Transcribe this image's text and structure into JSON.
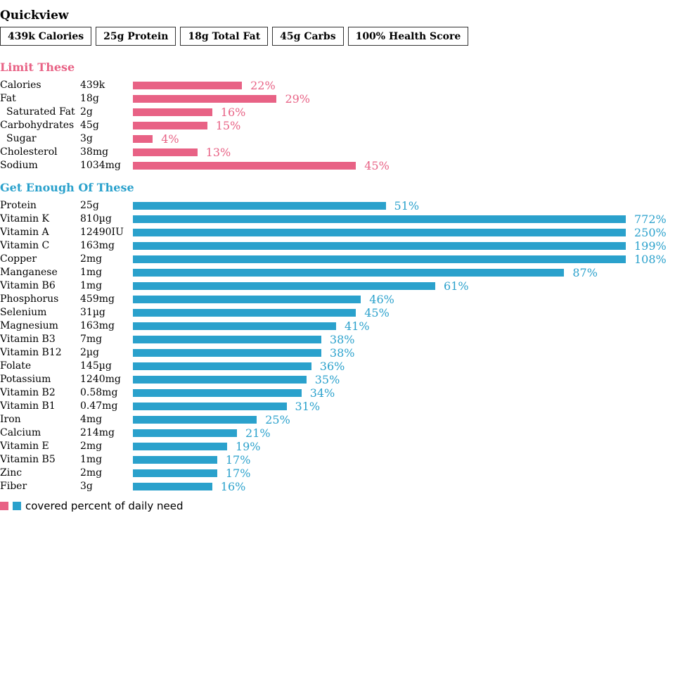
{
  "colors": {
    "limit": "#e86285",
    "enough": "#2aa1cc"
  },
  "quickview": {
    "title": "Quickview",
    "tiles": [
      "439k Calories",
      "25g Protein",
      "18g Total Fat",
      "45g Carbs",
      "100% Health Score"
    ]
  },
  "chart_data": [
    {
      "type": "bar",
      "title": "Limit These",
      "series_unit": "% of daily need",
      "rows": [
        {
          "name": "Calories",
          "amount": "439k",
          "value": 22,
          "label": "22%"
        },
        {
          "name": "Fat",
          "amount": "18g",
          "value": 29,
          "label": "29%"
        },
        {
          "name": "Saturated Fat",
          "amount": "2g",
          "value": 16,
          "label": "16%",
          "indent": true
        },
        {
          "name": "Carbohydrates",
          "amount": "45g",
          "value": 15,
          "label": "15%"
        },
        {
          "name": "Sugar",
          "amount": "3g",
          "value": 4,
          "label": "4%",
          "indent": true
        },
        {
          "name": "Cholesterol",
          "amount": "38mg",
          "value": 13,
          "label": "13%"
        },
        {
          "name": "Sodium",
          "amount": "1034mg",
          "value": 45,
          "label": "45%"
        }
      ]
    },
    {
      "type": "bar",
      "title": "Get Enough Of These",
      "series_unit": "% of daily need",
      "rows": [
        {
          "name": "Protein",
          "amount": "25g",
          "value": 51,
          "label": "51%"
        },
        {
          "name": "Vitamin K",
          "amount": "810µg",
          "value": 772,
          "label": "772%"
        },
        {
          "name": "Vitamin A",
          "amount": "12490IU",
          "value": 250,
          "label": "250%"
        },
        {
          "name": "Vitamin C",
          "amount": "163mg",
          "value": 199,
          "label": "199%"
        },
        {
          "name": "Copper",
          "amount": "2mg",
          "value": 108,
          "label": "108%"
        },
        {
          "name": "Manganese",
          "amount": "1mg",
          "value": 87,
          "label": "87%"
        },
        {
          "name": "Vitamin B6",
          "amount": "1mg",
          "value": 61,
          "label": "61%"
        },
        {
          "name": "Phosphorus",
          "amount": "459mg",
          "value": 46,
          "label": "46%"
        },
        {
          "name": "Selenium",
          "amount": "31µg",
          "value": 45,
          "label": "45%"
        },
        {
          "name": "Magnesium",
          "amount": "163mg",
          "value": 41,
          "label": "41%"
        },
        {
          "name": "Vitamin B3",
          "amount": "7mg",
          "value": 38,
          "label": "38%"
        },
        {
          "name": "Vitamin B12",
          "amount": "2µg",
          "value": 38,
          "label": "38%"
        },
        {
          "name": "Folate",
          "amount": "145µg",
          "value": 36,
          "label": "36%"
        },
        {
          "name": "Potassium",
          "amount": "1240mg",
          "value": 35,
          "label": "35%"
        },
        {
          "name": "Vitamin B2",
          "amount": "0.58mg",
          "value": 34,
          "label": "34%"
        },
        {
          "name": "Vitamin B1",
          "amount": "0.47mg",
          "value": 31,
          "label": "31%"
        },
        {
          "name": "Iron",
          "amount": "4mg",
          "value": 25,
          "label": "25%"
        },
        {
          "name": "Calcium",
          "amount": "214mg",
          "value": 21,
          "label": "21%"
        },
        {
          "name": "Vitamin E",
          "amount": "2mg",
          "value": 19,
          "label": "19%"
        },
        {
          "name": "Vitamin B5",
          "amount": "1mg",
          "value": 17,
          "label": "17%"
        },
        {
          "name": "Zinc",
          "amount": "2mg",
          "value": 17,
          "label": "17%"
        },
        {
          "name": "Fiber",
          "amount": "3g",
          "value": 16,
          "label": "16%"
        }
      ]
    }
  ],
  "legend": {
    "text": "covered percent of daily need"
  }
}
